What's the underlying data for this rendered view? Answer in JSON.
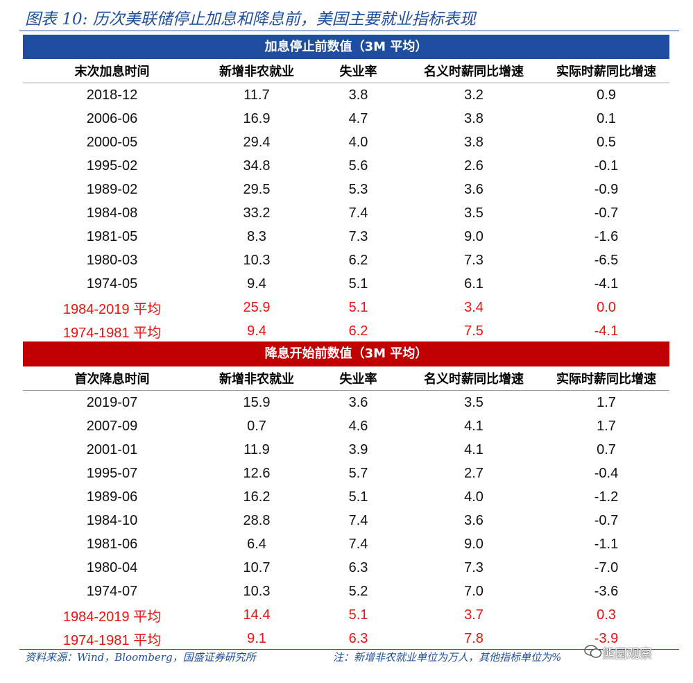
{
  "title": "图表 10: 历次美联储停止加息和降息前，美国主要就业指标表现",
  "sections": [
    {
      "banner": "加息停止前数值（3M 平均）",
      "headers": [
        "末次加息时间",
        "新增非农就业",
        "失业率",
        "名义时薪同比增速",
        "实际时薪同比增速"
      ],
      "rows": [
        [
          "2018-12",
          "11.7",
          "3.8",
          "3.2",
          "0.9"
        ],
        [
          "2006-06",
          "16.9",
          "4.7",
          "3.8",
          "0.1"
        ],
        [
          "2000-05",
          "29.4",
          "4.0",
          "3.8",
          "0.5"
        ],
        [
          "1995-02",
          "34.8",
          "5.6",
          "2.6",
          "-0.1"
        ],
        [
          "1989-02",
          "29.5",
          "5.3",
          "3.6",
          "-0.9"
        ],
        [
          "1984-08",
          "33.2",
          "7.4",
          "3.5",
          "-0.7"
        ],
        [
          "1981-05",
          "8.3",
          "7.3",
          "9.0",
          "-1.6"
        ],
        [
          "1980-03",
          "10.3",
          "6.2",
          "7.3",
          "-6.5"
        ],
        [
          "1974-05",
          "9.4",
          "5.1",
          "6.1",
          "-4.1"
        ]
      ],
      "averages": [
        [
          "1984-2019 平均",
          "25.9",
          "5.1",
          "3.4",
          "0.0"
        ],
        [
          "1974-1981 平均",
          "9.4",
          "6.2",
          "7.5",
          "-4.1"
        ]
      ]
    },
    {
      "banner": "降息开始前数值（3M 平均）",
      "headers": [
        "首次降息时间",
        "新增非农就业",
        "失业率",
        "名义时薪同比增速",
        "实际时薪同比增速"
      ],
      "rows": [
        [
          "2019-07",
          "15.9",
          "3.6",
          "3.5",
          "1.7"
        ],
        [
          "2007-09",
          "0.7",
          "4.6",
          "4.1",
          "1.7"
        ],
        [
          "2001-01",
          "11.9",
          "3.9",
          "4.1",
          "0.7"
        ],
        [
          "1995-07",
          "12.6",
          "5.7",
          "2.7",
          "-0.4"
        ],
        [
          "1989-06",
          "16.2",
          "5.1",
          "4.0",
          "-1.2"
        ],
        [
          "1984-10",
          "28.8",
          "7.4",
          "3.6",
          "-0.7"
        ],
        [
          "1981-06",
          "6.4",
          "7.4",
          "9.0",
          "-1.1"
        ],
        [
          "1980-04",
          "10.7",
          "6.3",
          "7.3",
          "-7.0"
        ],
        [
          "1974-07",
          "10.3",
          "5.2",
          "7.0",
          "-3.6"
        ]
      ],
      "averages": [
        [
          "1984-2019 平均",
          "14.4",
          "5.1",
          "3.7",
          "0.3"
        ],
        [
          "1974-1981 平均",
          "9.1",
          "6.3",
          "7.8",
          "-3.9"
        ]
      ]
    }
  ],
  "source": "资料来源：Wind，Bloomberg，国盛证券研究所",
  "note": "注：新增非农就业单位为万人，其他指标单位为%",
  "watermark": "熊园观察",
  "colors": {
    "title_blue": "#1f4e9c",
    "banner_blue": "#1f4ea0",
    "banner_red": "#c00000",
    "average_red": "#e8140f"
  }
}
